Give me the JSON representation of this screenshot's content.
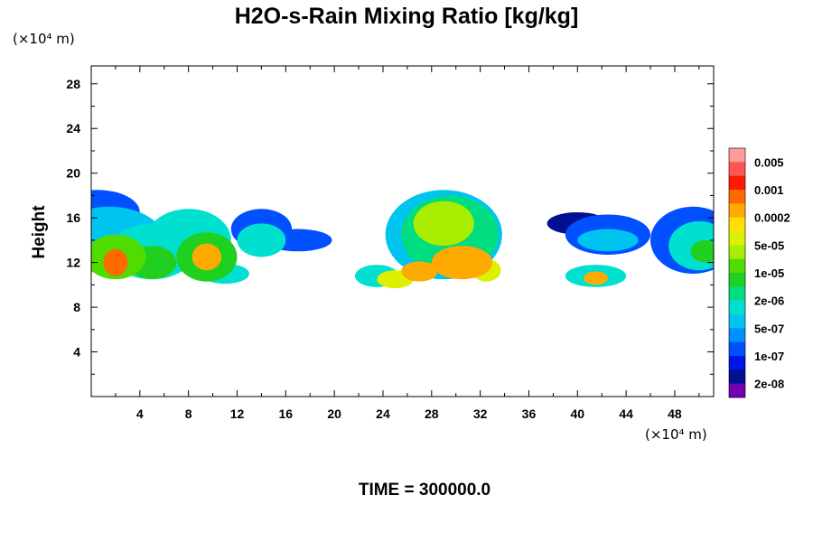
{
  "chart_data": {
    "type": "heatmap",
    "title": "H2O-s-Rain Mixing Ratio [kg/kg]",
    "ylabel": "Height",
    "x_unit": "(×10⁴ m)",
    "y_unit": "(×10⁴ m)",
    "xlim": [
      0,
      51.2
    ],
    "ylim": [
      0,
      29.6
    ],
    "x_ticks": [
      4,
      8,
      12,
      16,
      20,
      24,
      28,
      32,
      36,
      40,
      44,
      48
    ],
    "y_ticks": [
      4,
      8,
      12,
      16,
      20,
      24,
      28
    ],
    "time_label": "TIME = 300000.0",
    "colorbar": {
      "labels": [
        "0.005",
        "0.001",
        "0.0002",
        "5e-05",
        "1e-05",
        "2e-06",
        "5e-07",
        "1e-07",
        "2e-08"
      ],
      "colors": [
        "#ff9a9a",
        "#ff5555",
        "#ff1a00",
        "#ff6a00",
        "#ffaa00",
        "#ffe000",
        "#ddf000",
        "#a8ec00",
        "#50dc00",
        "#20d020",
        "#00dc80",
        "#00e0d0",
        "#00c4f0",
        "#0090ff",
        "#0050ff",
        "#0014e8",
        "#001090",
        "#7000b0"
      ]
    },
    "cells": [
      {
        "x": 0.5,
        "y": 16.5,
        "rx": 3.5,
        "ry": 2.0,
        "level": 14
      },
      {
        "x": 1.5,
        "y": 14.0,
        "rx": 4.5,
        "ry": 3.0,
        "level": 12
      },
      {
        "x": 2.0,
        "y": 12.5,
        "rx": 2.5,
        "ry": 2.0,
        "level": 8
      },
      {
        "x": 2.0,
        "y": 12.0,
        "rx": 1.0,
        "ry": 1.2,
        "level": 3
      },
      {
        "x": 5.0,
        "y": 13.0,
        "rx": 3.5,
        "ry": 2.5,
        "level": 11
      },
      {
        "x": 5.0,
        "y": 12.0,
        "rx": 2.0,
        "ry": 1.5,
        "level": 9
      },
      {
        "x": 8.0,
        "y": 14.0,
        "rx": 3.5,
        "ry": 2.8,
        "level": 11
      },
      {
        "x": 9.5,
        "y": 12.5,
        "rx": 2.5,
        "ry": 2.2,
        "level": 9
      },
      {
        "x": 9.5,
        "y": 12.5,
        "rx": 1.2,
        "ry": 1.2,
        "level": 4
      },
      {
        "x": 11.0,
        "y": 11.0,
        "rx": 2.0,
        "ry": 0.9,
        "level": 11
      },
      {
        "x": 14.0,
        "y": 15.0,
        "rx": 2.5,
        "ry": 1.8,
        "level": 14
      },
      {
        "x": 14.0,
        "y": 14.0,
        "rx": 2.0,
        "ry": 1.5,
        "level": 11
      },
      {
        "x": 17.0,
        "y": 14.0,
        "rx": 2.8,
        "ry": 1.0,
        "level": 14
      },
      {
        "x": 23.5,
        "y": 10.8,
        "rx": 1.8,
        "ry": 1.0,
        "level": 11
      },
      {
        "x": 25.0,
        "y": 10.5,
        "rx": 1.5,
        "ry": 0.8,
        "level": 6
      },
      {
        "x": 29.0,
        "y": 14.5,
        "rx": 4.8,
        "ry": 4.0,
        "level": 12
      },
      {
        "x": 29.5,
        "y": 14.5,
        "rx": 4.0,
        "ry": 3.5,
        "level": 10
      },
      {
        "x": 29.0,
        "y": 15.5,
        "rx": 2.5,
        "ry": 2.0,
        "level": 7
      },
      {
        "x": 30.5,
        "y": 12.0,
        "rx": 2.5,
        "ry": 1.5,
        "level": 4
      },
      {
        "x": 27.0,
        "y": 11.2,
        "rx": 1.5,
        "ry": 0.9,
        "level": 4
      },
      {
        "x": 32.5,
        "y": 11.3,
        "rx": 1.2,
        "ry": 1.0,
        "level": 6
      },
      {
        "x": 40.0,
        "y": 15.5,
        "rx": 2.5,
        "ry": 1.0,
        "level": 16
      },
      {
        "x": 42.5,
        "y": 14.5,
        "rx": 3.5,
        "ry": 1.8,
        "level": 14
      },
      {
        "x": 42.5,
        "y": 14.0,
        "rx": 2.5,
        "ry": 1.0,
        "level": 12
      },
      {
        "x": 41.5,
        "y": 10.8,
        "rx": 2.5,
        "ry": 1.0,
        "level": 11
      },
      {
        "x": 41.5,
        "y": 10.6,
        "rx": 1.0,
        "ry": 0.6,
        "level": 4
      },
      {
        "x": 49.5,
        "y": 14.0,
        "rx": 3.5,
        "ry": 3.0,
        "level": 14
      },
      {
        "x": 50.0,
        "y": 13.5,
        "rx": 2.5,
        "ry": 2.2,
        "level": 11
      },
      {
        "x": 50.5,
        "y": 13.0,
        "rx": 1.2,
        "ry": 1.0,
        "level": 9
      }
    ]
  }
}
